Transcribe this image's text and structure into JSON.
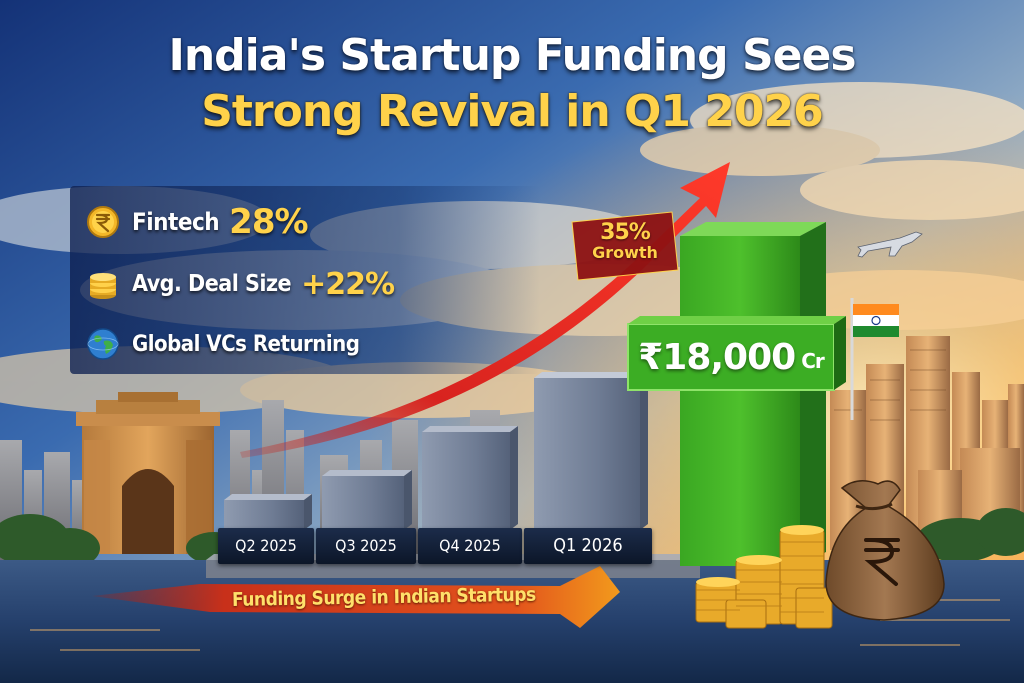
{
  "headline": {
    "line1": "India's Startup Funding Sees",
    "line2": "Strong Revival in Q1 2026"
  },
  "stats": [
    {
      "icon": "rupee-coin-icon",
      "label": "Fintech",
      "value": "28%"
    },
    {
      "icon": "coin-stack-icon",
      "label": "Avg. Deal Size",
      "value": "+22%"
    },
    {
      "icon": "globe-icon",
      "label": "Global VCs Returning",
      "value": ""
    }
  ],
  "chart_data": {
    "type": "bar",
    "categories": [
      "Q2 2025",
      "Q3 2025",
      "Q4 2025",
      "Q1 2026"
    ],
    "values": [
      null,
      null,
      null,
      18000
    ],
    "value_label": "₹18,000",
    "value_unit": "Cr",
    "annotation": {
      "value": "35%",
      "label": "Growth"
    }
  },
  "banner": {
    "text": "Funding Surge in Indian Startups"
  },
  "colors": {
    "headline_accent": "#ffd24a",
    "highlight_bar": "#3fb62a",
    "trend_arrow": "#d8231f",
    "past_bars": "#8e9aae"
  }
}
